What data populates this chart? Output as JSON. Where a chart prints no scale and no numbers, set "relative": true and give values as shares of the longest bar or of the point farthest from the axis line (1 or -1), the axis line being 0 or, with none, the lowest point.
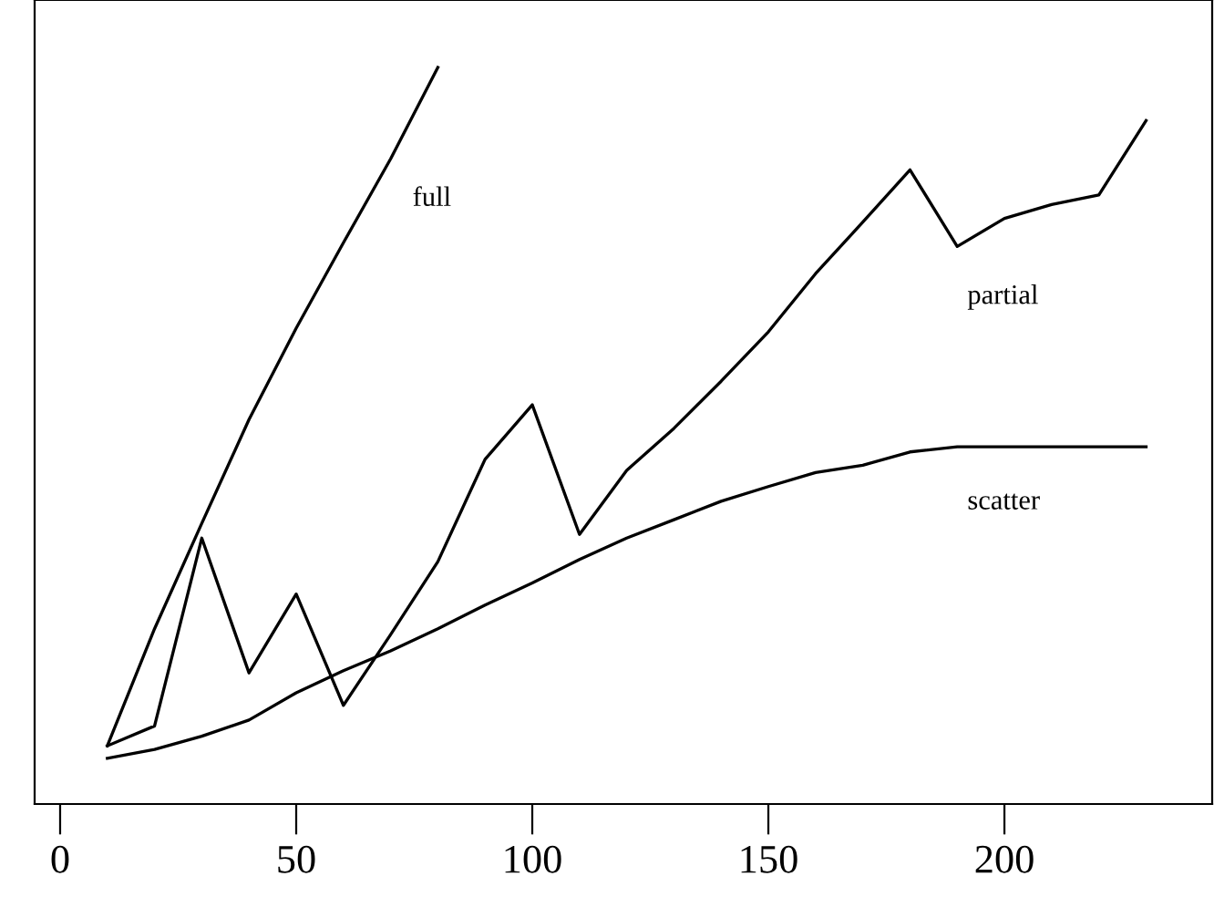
{
  "chart_data": {
    "type": "line",
    "relative": true,
    "tick_labels": "x",
    "grid": false,
    "legend": false,
    "marker": "none",
    "line_style": "solid",
    "xlim": [
      -5.4,
      244
    ],
    "xticks": [
      0,
      50,
      100,
      150,
      200
    ],
    "series": [
      {
        "name": "full",
        "color": "#000000",
        "x": [
          10,
          20,
          30,
          40,
          50,
          60,
          70,
          80
        ],
        "values": [
          0.079,
          0.238,
          0.381,
          0.522,
          0.646,
          0.762,
          0.876,
          1
        ]
      },
      {
        "name": "partial",
        "color": "#000000",
        "x": [
          10,
          20,
          30,
          40,
          50,
          60,
          70,
          80,
          90,
          100,
          110,
          120,
          130,
          140,
          150,
          160,
          170,
          180,
          190,
          200,
          210,
          220,
          230
        ],
        "values": [
          0.079,
          0.106,
          0.361,
          0.178,
          0.285,
          0.134,
          0.23,
          0.329,
          0.468,
          0.542,
          0.366,
          0.453,
          0.51,
          0.574,
          0.641,
          0.72,
          0.79,
          0.861,
          0.757,
          0.795,
          0.814,
          0.827,
          0.928
        ]
      },
      {
        "name": "scatter",
        "color": "#000000",
        "x": [
          10,
          20,
          30,
          40,
          50,
          60,
          70,
          80,
          90,
          100,
          110,
          120,
          130,
          140,
          150,
          160,
          170,
          180,
          190,
          200,
          210,
          220,
          230
        ],
        "values": [
          0.062,
          0.074,
          0.092,
          0.114,
          0.151,
          0.181,
          0.208,
          0.238,
          0.27,
          0.3,
          0.332,
          0.361,
          0.386,
          0.411,
          0.431,
          0.45,
          0.46,
          0.478,
          0.485,
          0.485,
          0.485,
          0.485,
          0.485
        ]
      }
    ]
  }
}
